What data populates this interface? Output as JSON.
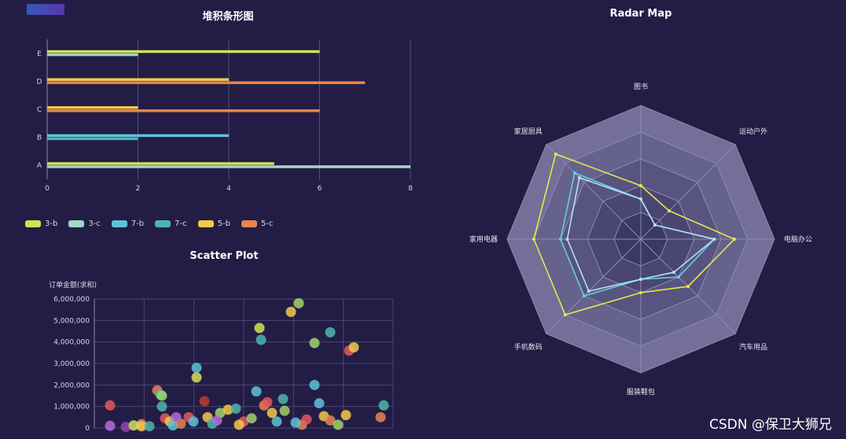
{
  "watermark": "CSDN @保卫大狮兄",
  "chart_data": [
    {
      "type": "bar",
      "orientation": "horizontal",
      "title": "堆积条形图",
      "categories": [
        "A",
        "B",
        "C",
        "D",
        "E"
      ],
      "xlim": [
        0,
        8
      ],
      "xticks": [
        "0",
        "2",
        "4",
        "6",
        "8"
      ],
      "legend_position": "bottom-left",
      "series": [
        {
          "name": "3-b",
          "color": "#d4e157",
          "values": [
            5,
            0,
            0,
            0,
            6
          ]
        },
        {
          "name": "3-c",
          "color": "#a5d6c9",
          "values": [
            8,
            0,
            0,
            0,
            2
          ]
        },
        {
          "name": "7-b",
          "color": "#5ec3d8",
          "values": [
            0,
            4,
            0,
            0,
            0
          ]
        },
        {
          "name": "7-c",
          "color": "#4db6ac",
          "values": [
            0,
            2,
            0,
            0,
            0
          ]
        },
        {
          "name": "5-b",
          "color": "#f2c94c",
          "values": [
            0,
            0,
            2,
            4,
            0
          ]
        },
        {
          "name": "5-c",
          "color": "#e8854f",
          "values": [
            0,
            0,
            6,
            7,
            0
          ]
        }
      ]
    },
    {
      "type": "radar",
      "title": "Radar Map",
      "indicators": [
        "图书",
        "运动户外",
        "电脑办公",
        "汽车用品",
        "服装鞋包",
        "手机数码",
        "家用电器",
        "家居厨具"
      ],
      "max": 10,
      "rings": 5,
      "series": [
        {
          "color": "#e8e84a",
          "values": [
            4,
            3,
            7,
            5,
            4,
            8,
            8,
            9
          ]
        },
        {
          "color": "#5fd1e8",
          "values": [
            3,
            1.5,
            5.5,
            4,
            3,
            6,
            6,
            7
          ]
        },
        {
          "color": "#b8e0f0",
          "values": [
            3,
            1.5,
            5.5,
            3.5,
            3,
            5.5,
            5.5,
            6.5
          ]
        }
      ]
    },
    {
      "type": "scatter",
      "title": "Scatter Plot",
      "ylabel": "订单金额(求和)",
      "ylim": [
        0,
        6000000
      ],
      "yticks": [
        "0",
        "1,000,000",
        "2,000,000",
        "3,000,000",
        "4,000,000",
        "5,000,000",
        "6,000,000"
      ],
      "points": [
        {
          "x": 1,
          "y": 1050000,
          "c": "#e05a5a"
        },
        {
          "x": 1,
          "y": 100000,
          "c": "#b06fd8"
        },
        {
          "x": 2,
          "y": 50000,
          "c": "#8e44ad"
        },
        {
          "x": 3,
          "y": 180000,
          "c": "#e8854f"
        },
        {
          "x": 3,
          "y": 80000,
          "c": "#f2c94c"
        },
        {
          "x": 4,
          "y": 1750000,
          "c": "#e8854f"
        },
        {
          "x": 4.2,
          "y": 1550000,
          "c": "#4db6ac"
        },
        {
          "x": 4.3,
          "y": 1500000,
          "c": "#a0d468"
        },
        {
          "x": 4.3,
          "y": 1000000,
          "c": "#4db6ac"
        },
        {
          "x": 4.5,
          "y": 450000,
          "c": "#e05a5a"
        },
        {
          "x": 4.8,
          "y": 300000,
          "c": "#f2c94c"
        },
        {
          "x": 5,
          "y": 120000,
          "c": "#5ec3d8"
        },
        {
          "x": 5.5,
          "y": 200000,
          "c": "#e8854f"
        },
        {
          "x": 6,
          "y": 500000,
          "c": "#e05a5a"
        },
        {
          "x": 6.3,
          "y": 300000,
          "c": "#5ec3d8"
        },
        {
          "x": 6.5,
          "y": 2800000,
          "c": "#5ec3d8"
        },
        {
          "x": 6.5,
          "y": 2350000,
          "c": "#d4e157"
        },
        {
          "x": 7,
          "y": 1250000,
          "c": "#c0392b"
        },
        {
          "x": 7.2,
          "y": 500000,
          "c": "#f2c94c"
        },
        {
          "x": 7.5,
          "y": 200000,
          "c": "#4db6ac"
        },
        {
          "x": 8,
          "y": 700000,
          "c": "#a0d468"
        },
        {
          "x": 8.5,
          "y": 850000,
          "c": "#f2c94c"
        },
        {
          "x": 9,
          "y": 900000,
          "c": "#4db6ac"
        },
        {
          "x": 9.5,
          "y": 300000,
          "c": "#e05a5a"
        },
        {
          "x": 10,
          "y": 450000,
          "c": "#a0d468"
        },
        {
          "x": 10.3,
          "y": 1700000,
          "c": "#5ec3d8"
        },
        {
          "x": 10.5,
          "y": 4650000,
          "c": "#d4e157"
        },
        {
          "x": 10.6,
          "y": 4100000,
          "c": "#4db6ac"
        },
        {
          "x": 10.8,
          "y": 1050000,
          "c": "#e8854f"
        },
        {
          "x": 11,
          "y": 1200000,
          "c": "#e05a5a"
        },
        {
          "x": 11.3,
          "y": 700000,
          "c": "#f2c94c"
        },
        {
          "x": 11.6,
          "y": 300000,
          "c": "#5ec3d8"
        },
        {
          "x": 12,
          "y": 1350000,
          "c": "#4db6ac"
        },
        {
          "x": 12.1,
          "y": 800000,
          "c": "#a0d468"
        },
        {
          "x": 12.5,
          "y": 5400000,
          "c": "#f2c94c"
        },
        {
          "x": 13,
          "y": 5800000,
          "c": "#a0d468"
        },
        {
          "x": 13.2,
          "y": 150000,
          "c": "#e8854f"
        },
        {
          "x": 13.5,
          "y": 400000,
          "c": "#e05a5a"
        },
        {
          "x": 14,
          "y": 2000000,
          "c": "#5ec3d8"
        },
        {
          "x": 14,
          "y": 3950000,
          "c": "#a0d468"
        },
        {
          "x": 14.3,
          "y": 1150000,
          "c": "#5ec3d8"
        },
        {
          "x": 14.6,
          "y": 550000,
          "c": "#f2c94c"
        },
        {
          "x": 15,
          "y": 4450000,
          "c": "#4db6ac"
        },
        {
          "x": 15,
          "y": 350000,
          "c": "#e8854f"
        },
        {
          "x": 15.5,
          "y": 150000,
          "c": "#a0d468"
        },
        {
          "x": 16,
          "y": 600000,
          "c": "#f2c94c"
        },
        {
          "x": 16.2,
          "y": 3600000,
          "c": "#e05a5a"
        },
        {
          "x": 16.5,
          "y": 3750000,
          "c": "#f2c94c"
        },
        {
          "x": 18.4,
          "y": 1050000,
          "c": "#4db6ac"
        },
        {
          "x": 18.2,
          "y": 500000,
          "c": "#e8854f"
        },
        {
          "x": 2.5,
          "y": 120000,
          "c": "#d4e157"
        },
        {
          "x": 3.5,
          "y": 80000,
          "c": "#4db6ac"
        },
        {
          "x": 5.2,
          "y": 500000,
          "c": "#b06fd8"
        },
        {
          "x": 7.8,
          "y": 350000,
          "c": "#b06fd8"
        },
        {
          "x": 9.2,
          "y": 150000,
          "c": "#f2c94c"
        },
        {
          "x": 12.8,
          "y": 250000,
          "c": "#5ec3d8"
        }
      ]
    }
  ]
}
